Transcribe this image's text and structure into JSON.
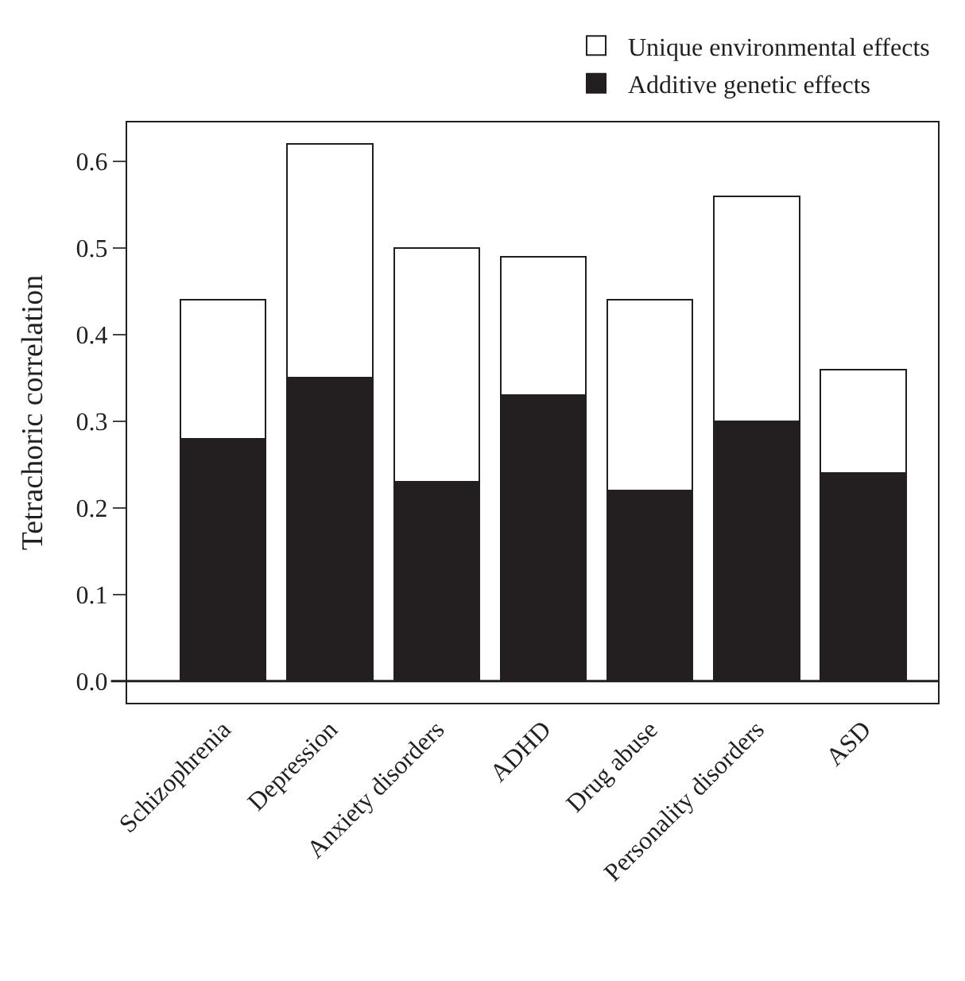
{
  "chart_data": {
    "type": "bar",
    "stacked": true,
    "ylabel": "Tetrachoric correlation",
    "categories": [
      "Schizophrenia",
      "Depression",
      "Anxiety disorders",
      "ADHD",
      "Drug abuse",
      "Personality disorders",
      "ASD"
    ],
    "series": [
      {
        "name": "Additive genetic effects",
        "color": "#231f20",
        "values": [
          0.28,
          0.35,
          0.23,
          0.33,
          0.22,
          0.3,
          0.24
        ]
      },
      {
        "name": "Unique environmental effects",
        "color": "#ffffff",
        "values": [
          0.16,
          0.27,
          0.27,
          0.16,
          0.22,
          0.26,
          0.12
        ]
      }
    ],
    "ylim": [
      -0.025,
      0.645
    ],
    "yticks": [
      {
        "value": 0,
        "label": "0.0"
      },
      0.1,
      0.2,
      0.3,
      0.4,
      0.5,
      0.6
    ],
    "ref_lines": [
      {
        "axis": "y",
        "value": 0,
        "label": null,
        "color": "#231f20"
      }
    ],
    "legend": "top right"
  }
}
